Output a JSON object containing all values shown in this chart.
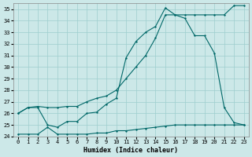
{
  "xlabel": "Humidex (Indice chaleur)",
  "xlim": [
    -0.5,
    23.5
  ],
  "ylim": [
    24,
    35.5
  ],
  "yticks": [
    24,
    25,
    26,
    27,
    28,
    29,
    30,
    31,
    32,
    33,
    34,
    35
  ],
  "xticks": [
    0,
    1,
    2,
    3,
    4,
    5,
    6,
    7,
    8,
    9,
    10,
    11,
    12,
    13,
    14,
    15,
    16,
    17,
    18,
    19,
    20,
    21,
    22,
    23
  ],
  "bg_color": "#cce8e8",
  "line_color": "#006868",
  "grid_color": "#9ecece",
  "line1_x": [
    0,
    1,
    2,
    3,
    4,
    5,
    6,
    7,
    8,
    9,
    10,
    11,
    12,
    13,
    14,
    15,
    16,
    17,
    18,
    19,
    20,
    21,
    22,
    23
  ],
  "line1_y": [
    24.2,
    24.2,
    24.2,
    24.8,
    24.2,
    24.2,
    24.2,
    24.2,
    24.3,
    24.3,
    24.5,
    24.5,
    24.6,
    24.7,
    24.8,
    24.9,
    25.0,
    25.0,
    25.0,
    25.0,
    25.0,
    25.0,
    25.0,
    25.0
  ],
  "line2_x": [
    0,
    1,
    2,
    3,
    4,
    5,
    6,
    7,
    8,
    9,
    10,
    11,
    12,
    13,
    14,
    15,
    16,
    17,
    18,
    19,
    20,
    21,
    22,
    23
  ],
  "line2_y": [
    26.0,
    26.5,
    26.5,
    25.0,
    24.8,
    25.3,
    25.3,
    26.0,
    26.1,
    26.8,
    27.3,
    30.8,
    32.2,
    33.0,
    33.5,
    35.1,
    34.5,
    34.2,
    32.7,
    32.7,
    31.2,
    26.5,
    25.2,
    25.0
  ],
  "line3_x": [
    0,
    1,
    2,
    3,
    4,
    5,
    6,
    7,
    8,
    9,
    10,
    11,
    12,
    13,
    14,
    15,
    16,
    17,
    18,
    19,
    20,
    21,
    22,
    23
  ],
  "line3_y": [
    26.0,
    26.5,
    26.6,
    26.5,
    26.5,
    26.6,
    26.6,
    27.0,
    27.3,
    27.5,
    28.0,
    29.0,
    30.0,
    31.0,
    32.5,
    34.5,
    34.5,
    34.5,
    34.5,
    34.5,
    34.5,
    34.5,
    35.3,
    35.3
  ]
}
